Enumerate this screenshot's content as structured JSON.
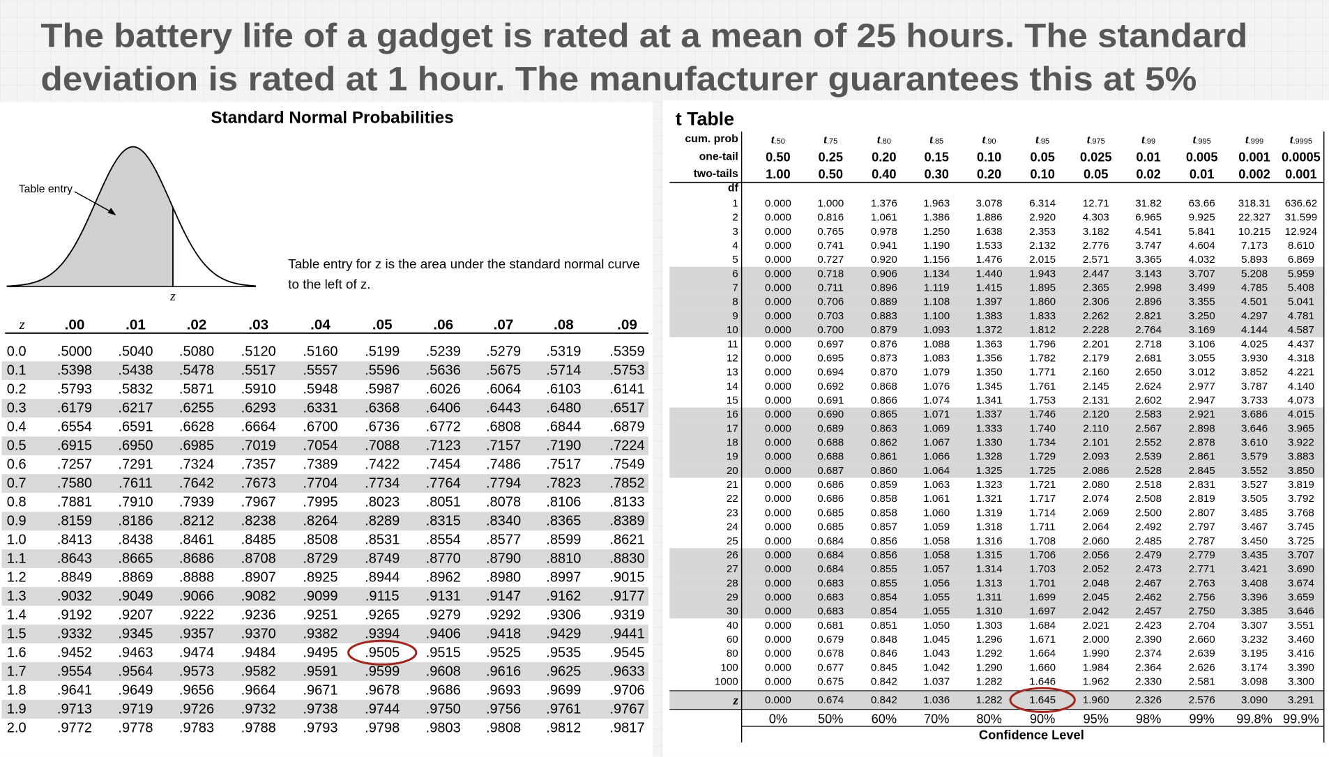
{
  "header": {
    "title_lines": [
      "The battery life of a gadget is rated at a mean of 25 hours. The standard",
      "deviation is rated at 1 hour.  The manufacturer guarantees this at 5%"
    ]
  },
  "z_table": {
    "title": "Standard Normal Probabilities",
    "figure_label": "Table entry",
    "figure_axis": "z",
    "caption_lines": [
      "Table entry for z is the area under the standard normal curve",
      "to the left of z."
    ],
    "columns": [
      "z",
      ".00",
      ".01",
      ".02",
      ".03",
      ".04",
      ".05",
      ".06",
      ".07",
      ".08",
      ".09"
    ],
    "rows": [
      [
        "0.0",
        ".5000",
        ".5040",
        ".5080",
        ".5120",
        ".5160",
        ".5199",
        ".5239",
        ".5279",
        ".5319",
        ".5359"
      ],
      [
        "0.1",
        ".5398",
        ".5438",
        ".5478",
        ".5517",
        ".5557",
        ".5596",
        ".5636",
        ".5675",
        ".5714",
        ".5753"
      ],
      [
        "0.2",
        ".5793",
        ".5832",
        ".5871",
        ".5910",
        ".5948",
        ".5987",
        ".6026",
        ".6064",
        ".6103",
        ".6141"
      ],
      [
        "0.3",
        ".6179",
        ".6217",
        ".6255",
        ".6293",
        ".6331",
        ".6368",
        ".6406",
        ".6443",
        ".6480",
        ".6517"
      ],
      [
        "0.4",
        ".6554",
        ".6591",
        ".6628",
        ".6664",
        ".6700",
        ".6736",
        ".6772",
        ".6808",
        ".6844",
        ".6879"
      ],
      [
        "0.5",
        ".6915",
        ".6950",
        ".6985",
        ".7019",
        ".7054",
        ".7088",
        ".7123",
        ".7157",
        ".7190",
        ".7224"
      ],
      [
        "0.6",
        ".7257",
        ".7291",
        ".7324",
        ".7357",
        ".7389",
        ".7422",
        ".7454",
        ".7486",
        ".7517",
        ".7549"
      ],
      [
        "0.7",
        ".7580",
        ".7611",
        ".7642",
        ".7673",
        ".7704",
        ".7734",
        ".7764",
        ".7794",
        ".7823",
        ".7852"
      ],
      [
        "0.8",
        ".7881",
        ".7910",
        ".7939",
        ".7967",
        ".7995",
        ".8023",
        ".8051",
        ".8078",
        ".8106",
        ".8133"
      ],
      [
        "0.9",
        ".8159",
        ".8186",
        ".8212",
        ".8238",
        ".8264",
        ".8289",
        ".8315",
        ".8340",
        ".8365",
        ".8389"
      ],
      [
        "1.0",
        ".8413",
        ".8438",
        ".8461",
        ".8485",
        ".8508",
        ".8531",
        ".8554",
        ".8577",
        ".8599",
        ".8621"
      ],
      [
        "1.1",
        ".8643",
        ".8665",
        ".8686",
        ".8708",
        ".8729",
        ".8749",
        ".8770",
        ".8790",
        ".8810",
        ".8830"
      ],
      [
        "1.2",
        ".8849",
        ".8869",
        ".8888",
        ".8907",
        ".8925",
        ".8944",
        ".8962",
        ".8980",
        ".8997",
        ".9015"
      ],
      [
        "1.3",
        ".9032",
        ".9049",
        ".9066",
        ".9082",
        ".9099",
        ".9115",
        ".9131",
        ".9147",
        ".9162",
        ".9177"
      ],
      [
        "1.4",
        ".9192",
        ".9207",
        ".9222",
        ".9236",
        ".9251",
        ".9265",
        ".9279",
        ".9292",
        ".9306",
        ".9319"
      ],
      [
        "1.5",
        ".9332",
        ".9345",
        ".9357",
        ".9370",
        ".9382",
        ".9394",
        ".9406",
        ".9418",
        ".9429",
        ".9441"
      ],
      [
        "1.6",
        ".9452",
        ".9463",
        ".9474",
        ".9484",
        ".9495",
        ".9505",
        ".9515",
        ".9525",
        ".9535",
        ".9545"
      ],
      [
        "1.7",
        ".9554",
        ".9564",
        ".9573",
        ".9582",
        ".9591",
        ".9599",
        ".9608",
        ".9616",
        ".9625",
        ".9633"
      ],
      [
        "1.8",
        ".9641",
        ".9649",
        ".9656",
        ".9664",
        ".9671",
        ".9678",
        ".9686",
        ".9693",
        ".9699",
        ".9706"
      ],
      [
        "1.9",
        ".9713",
        ".9719",
        ".9726",
        ".9732",
        ".9738",
        ".9744",
        ".9750",
        ".9756",
        ".9761",
        ".9767"
      ],
      [
        "2.0",
        ".9772",
        ".9778",
        ".9783",
        ".9788",
        ".9793",
        ".9798",
        ".9803",
        ".9808",
        ".9812",
        ".9817"
      ]
    ]
  },
  "t_table": {
    "title": "t Table",
    "symbol": "t",
    "row_labels": {
      "cum_prob": "cum. prob",
      "one_tail": "one-tail",
      "two_tails": "two-tails",
      "df": "df"
    },
    "cum_prob": [
      ".50",
      ".75",
      ".80",
      ".85",
      ".90",
      ".95",
      ".975",
      ".99",
      ".995",
      ".999",
      ".9995"
    ],
    "one_tail": [
      "0.50",
      "0.25",
      "0.20",
      "0.15",
      "0.10",
      "0.05",
      "0.025",
      "0.01",
      "0.005",
      "0.001",
      "0.0005"
    ],
    "two_tails": [
      "1.00",
      "0.50",
      "0.40",
      "0.30",
      "0.20",
      "0.10",
      "0.05",
      "0.02",
      "0.01",
      "0.002",
      "0.001"
    ],
    "rows": [
      [
        "1",
        "0.000",
        "1.000",
        "1.376",
        "1.963",
        "3.078",
        "6.314",
        "12.71",
        "31.82",
        "63.66",
        "318.31",
        "636.62"
      ],
      [
        "2",
        "0.000",
        "0.816",
        "1.061",
        "1.386",
        "1.886",
        "2.920",
        "4.303",
        "6.965",
        "9.925",
        "22.327",
        "31.599"
      ],
      [
        "3",
        "0.000",
        "0.765",
        "0.978",
        "1.250",
        "1.638",
        "2.353",
        "3.182",
        "4.541",
        "5.841",
        "10.215",
        "12.924"
      ],
      [
        "4",
        "0.000",
        "0.741",
        "0.941",
        "1.190",
        "1.533",
        "2.132",
        "2.776",
        "3.747",
        "4.604",
        "7.173",
        "8.610"
      ],
      [
        "5",
        "0.000",
        "0.727",
        "0.920",
        "1.156",
        "1.476",
        "2.015",
        "2.571",
        "3.365",
        "4.032",
        "5.893",
        "6.869"
      ],
      [
        "6",
        "0.000",
        "0.718",
        "0.906",
        "1.134",
        "1.440",
        "1.943",
        "2.447",
        "3.143",
        "3.707",
        "5.208",
        "5.959"
      ],
      [
        "7",
        "0.000",
        "0.711",
        "0.896",
        "1.119",
        "1.415",
        "1.895",
        "2.365",
        "2.998",
        "3.499",
        "4.785",
        "5.408"
      ],
      [
        "8",
        "0.000",
        "0.706",
        "0.889",
        "1.108",
        "1.397",
        "1.860",
        "2.306",
        "2.896",
        "3.355",
        "4.501",
        "5.041"
      ],
      [
        "9",
        "0.000",
        "0.703",
        "0.883",
        "1.100",
        "1.383",
        "1.833",
        "2.262",
        "2.821",
        "3.250",
        "4.297",
        "4.781"
      ],
      [
        "10",
        "0.000",
        "0.700",
        "0.879",
        "1.093",
        "1.372",
        "1.812",
        "2.228",
        "2.764",
        "3.169",
        "4.144",
        "4.587"
      ],
      [
        "11",
        "0.000",
        "0.697",
        "0.876",
        "1.088",
        "1.363",
        "1.796",
        "2.201",
        "2.718",
        "3.106",
        "4.025",
        "4.437"
      ],
      [
        "12",
        "0.000",
        "0.695",
        "0.873",
        "1.083",
        "1.356",
        "1.782",
        "2.179",
        "2.681",
        "3.055",
        "3.930",
        "4.318"
      ],
      [
        "13",
        "0.000",
        "0.694",
        "0.870",
        "1.079",
        "1.350",
        "1.771",
        "2.160",
        "2.650",
        "3.012",
        "3.852",
        "4.221"
      ],
      [
        "14",
        "0.000",
        "0.692",
        "0.868",
        "1.076",
        "1.345",
        "1.761",
        "2.145",
        "2.624",
        "2.977",
        "3.787",
        "4.140"
      ],
      [
        "15",
        "0.000",
        "0.691",
        "0.866",
        "1.074",
        "1.341",
        "1.753",
        "2.131",
        "2.602",
        "2.947",
        "3.733",
        "4.073"
      ],
      [
        "16",
        "0.000",
        "0.690",
        "0.865",
        "1.071",
        "1.337",
        "1.746",
        "2.120",
        "2.583",
        "2.921",
        "3.686",
        "4.015"
      ],
      [
        "17",
        "0.000",
        "0.689",
        "0.863",
        "1.069",
        "1.333",
        "1.740",
        "2.110",
        "2.567",
        "2.898",
        "3.646",
        "3.965"
      ],
      [
        "18",
        "0.000",
        "0.688",
        "0.862",
        "1.067",
        "1.330",
        "1.734",
        "2.101",
        "2.552",
        "2.878",
        "3.610",
        "3.922"
      ],
      [
        "19",
        "0.000",
        "0.688",
        "0.861",
        "1.066",
        "1.328",
        "1.729",
        "2.093",
        "2.539",
        "2.861",
        "3.579",
        "3.883"
      ],
      [
        "20",
        "0.000",
        "0.687",
        "0.860",
        "1.064",
        "1.325",
        "1.725",
        "2.086",
        "2.528",
        "2.845",
        "3.552",
        "3.850"
      ],
      [
        "21",
        "0.000",
        "0.686",
        "0.859",
        "1.063",
        "1.323",
        "1.721",
        "2.080",
        "2.518",
        "2.831",
        "3.527",
        "3.819"
      ],
      [
        "22",
        "0.000",
        "0.686",
        "0.858",
        "1.061",
        "1.321",
        "1.717",
        "2.074",
        "2.508",
        "2.819",
        "3.505",
        "3.792"
      ],
      [
        "23",
        "0.000",
        "0.685",
        "0.858",
        "1.060",
        "1.319",
        "1.714",
        "2.069",
        "2.500",
        "2.807",
        "3.485",
        "3.768"
      ],
      [
        "24",
        "0.000",
        "0.685",
        "0.857",
        "1.059",
        "1.318",
        "1.711",
        "2.064",
        "2.492",
        "2.797",
        "3.467",
        "3.745"
      ],
      [
        "25",
        "0.000",
        "0.684",
        "0.856",
        "1.058",
        "1.316",
        "1.708",
        "2.060",
        "2.485",
        "2.787",
        "3.450",
        "3.725"
      ],
      [
        "26",
        "0.000",
        "0.684",
        "0.856",
        "1.058",
        "1.315",
        "1.706",
        "2.056",
        "2.479",
        "2.779",
        "3.435",
        "3.707"
      ],
      [
        "27",
        "0.000",
        "0.684",
        "0.855",
        "1.057",
        "1.314",
        "1.703",
        "2.052",
        "2.473",
        "2.771",
        "3.421",
        "3.690"
      ],
      [
        "28",
        "0.000",
        "0.683",
        "0.855",
        "1.056",
        "1.313",
        "1.701",
        "2.048",
        "2.467",
        "2.763",
        "3.408",
        "3.674"
      ],
      [
        "29",
        "0.000",
        "0.683",
        "0.854",
        "1.055",
        "1.311",
        "1.699",
        "2.045",
        "2.462",
        "2.756",
        "3.396",
        "3.659"
      ],
      [
        "30",
        "0.000",
        "0.683",
        "0.854",
        "1.055",
        "1.310",
        "1.697",
        "2.042",
        "2.457",
        "2.750",
        "3.385",
        "3.646"
      ],
      [
        "40",
        "0.000",
        "0.681",
        "0.851",
        "1.050",
        "1.303",
        "1.684",
        "2.021",
        "2.423",
        "2.704",
        "3.307",
        "3.551"
      ],
      [
        "60",
        "0.000",
        "0.679",
        "0.848",
        "1.045",
        "1.296",
        "1.671",
        "2.000",
        "2.390",
        "2.660",
        "3.232",
        "3.460"
      ],
      [
        "80",
        "0.000",
        "0.678",
        "0.846",
        "1.043",
        "1.292",
        "1.664",
        "1.990",
        "2.374",
        "2.639",
        "3.195",
        "3.416"
      ],
      [
        "100",
        "0.000",
        "0.677",
        "0.845",
        "1.042",
        "1.290",
        "1.660",
        "1.984",
        "2.364",
        "2.626",
        "3.174",
        "3.390"
      ],
      [
        "1000",
        "0.000",
        "0.675",
        "0.842",
        "1.037",
        "1.282",
        "1.646",
        "1.962",
        "2.330",
        "2.581",
        "3.098",
        "3.300"
      ]
    ],
    "z_row": [
      "z",
      "0.000",
      "0.674",
      "0.842",
      "1.036",
      "1.282",
      "1.645",
      "1.960",
      "2.326",
      "2.576",
      "3.090",
      "3.291"
    ],
    "confidence": [
      "0%",
      "50%",
      "60%",
      "70%",
      "80%",
      "90%",
      "95%",
      "98%",
      "99%",
      "99.8%",
      "99.9%"
    ],
    "confidence_label": "Confidence Level"
  }
}
